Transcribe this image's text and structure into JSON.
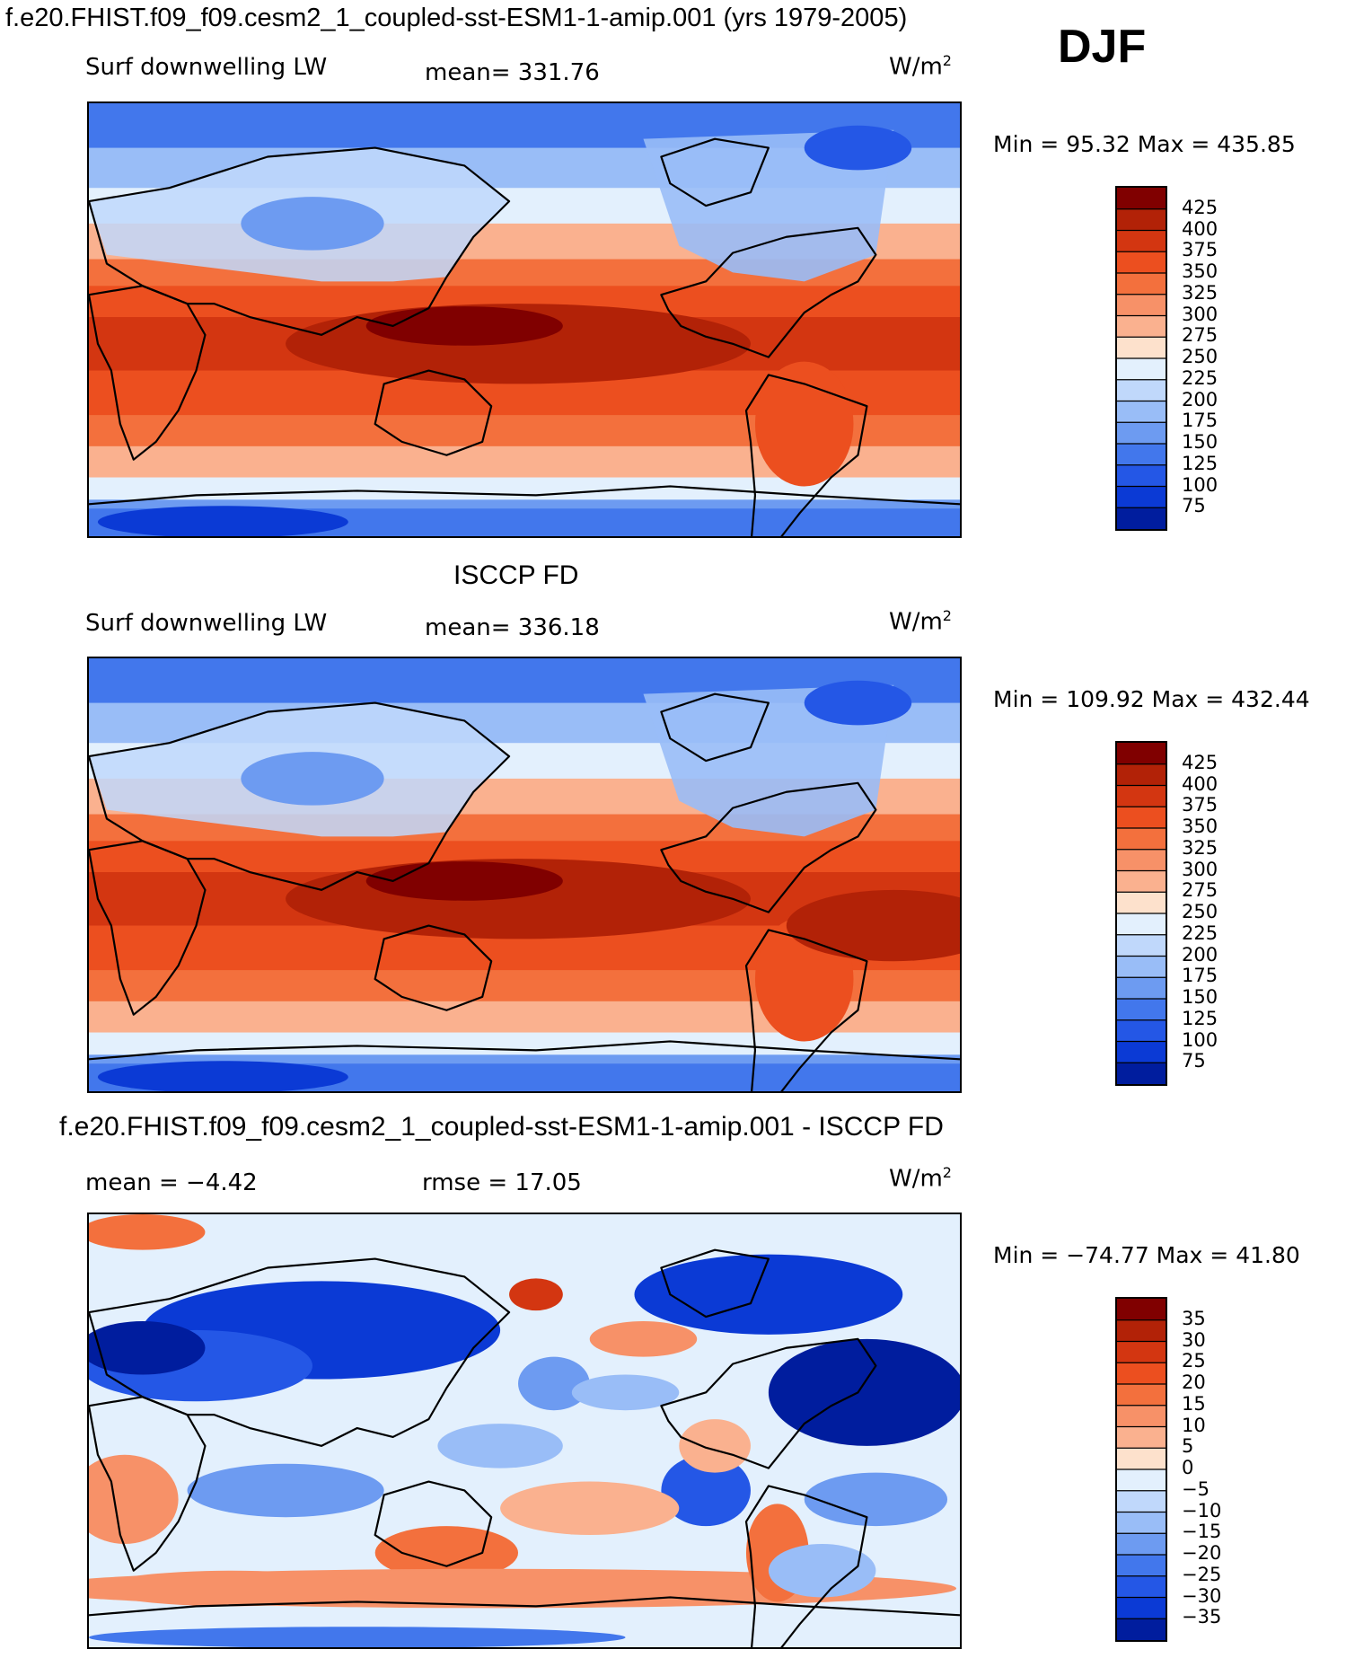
{
  "season": "DJF",
  "panels": [
    {
      "title": "f.e20.FHIST.f09_f09.cesm2_1_coupled-sst-ESM1-1-amip.001 (yrs 1979-2005)",
      "variable": "Surf downwelling LW",
      "mean_text": "mean= 331.76",
      "units_base": "W/m",
      "units_exp": "2",
      "minmax": "Min =  95.32 Max = 435.85",
      "colorbar": {
        "labels": [
          "425",
          "400",
          "375",
          "350",
          "325",
          "300",
          "275",
          "250",
          "225",
          "200",
          "175",
          "150",
          "125",
          "100",
          "75"
        ],
        "colors": [
          "#800000",
          "#b22207",
          "#d33611",
          "#ec4f1f",
          "#f3703d",
          "#f79168",
          "#fab18f",
          "#fde1cc",
          "#e3f0fd",
          "#c0d8fb",
          "#99bdf7",
          "#6d9bf1",
          "#4277ec",
          "#2457e6",
          "#0b3ad5",
          "#001d9e"
        ]
      }
    },
    {
      "title": "ISCCP FD",
      "variable": "Surf downwelling LW",
      "mean_text": "mean= 336.18",
      "units_base": "W/m",
      "units_exp": "2",
      "minmax": "Min = 109.92 Max = 432.44",
      "colorbar": {
        "labels": [
          "425",
          "400",
          "375",
          "350",
          "325",
          "300",
          "275",
          "250",
          "225",
          "200",
          "175",
          "150",
          "125",
          "100",
          "75"
        ],
        "colors": [
          "#800000",
          "#b22207",
          "#d33611",
          "#ec4f1f",
          "#f3703d",
          "#f79168",
          "#fab18f",
          "#fde1cc",
          "#e3f0fd",
          "#c0d8fb",
          "#99bdf7",
          "#6d9bf1",
          "#4277ec",
          "#2457e6",
          "#0b3ad5",
          "#001d9e"
        ]
      }
    },
    {
      "title": "f.e20.FHIST.f09_f09.cesm2_1_coupled-sst-ESM1-1-amip.001 - ISCCP FD",
      "mean_text": "mean =   −4.42",
      "rmse_text": "rmse =   17.05",
      "units_base": "W/m",
      "units_exp": "2",
      "minmax": "Min = −74.77 Max =  41.80",
      "colorbar": {
        "labels": [
          "35",
          "30",
          "25",
          "20",
          "15",
          "10",
          "5",
          "0",
          "−5",
          "−10",
          "−15",
          "−20",
          "−25",
          "−30",
          "−35"
        ],
        "colors": [
          "#800000",
          "#b22207",
          "#d33611",
          "#ec4f1f",
          "#f3703d",
          "#f79168",
          "#fab18f",
          "#fde1cc",
          "#e3f0fd",
          "#c0d8fb",
          "#99bdf7",
          "#6d9bf1",
          "#4277ec",
          "#2457e6",
          "#0b3ad5",
          "#001d9e"
        ]
      }
    }
  ]
}
